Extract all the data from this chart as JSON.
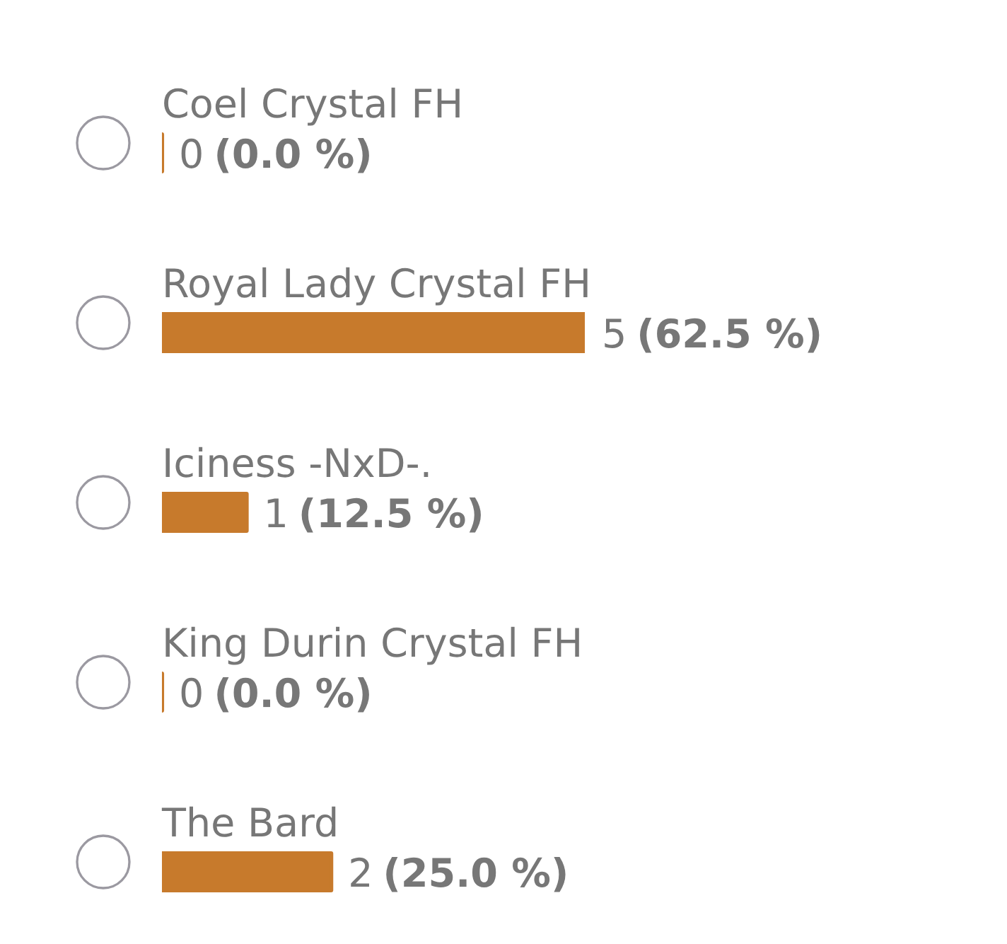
{
  "chart_data": {
    "type": "bar",
    "orientation": "horizontal",
    "categories": [
      "Coel Crystal FH",
      "Royal Lady Crystal FH",
      "Iciness -NxD-.",
      "King Durin Crystal FH",
      "The Bard"
    ],
    "values": [
      0,
      5,
      1,
      0,
      2
    ],
    "value_labels": [
      "0 (0.0 %)",
      "5 (62.5 %)",
      "1 (12.5 %)",
      "0 (0.0 %)",
      "2 (25.0 %)"
    ],
    "color": "#c77a2c"
  }
}
